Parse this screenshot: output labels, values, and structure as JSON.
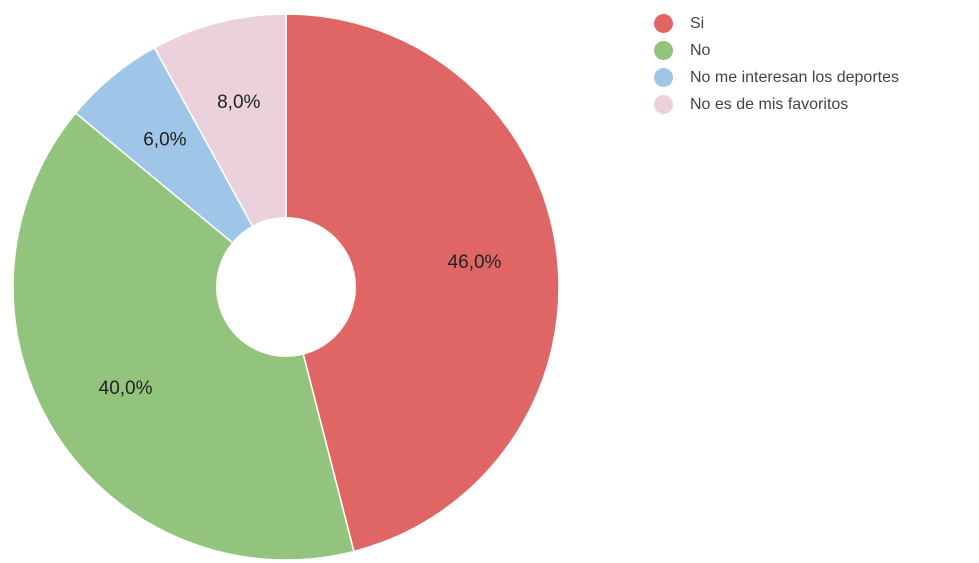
{
  "chart_data": {
    "type": "pie",
    "donut": true,
    "title": "",
    "start_angle_deg": 0,
    "direction": "clockwise",
    "legend_position": "right",
    "slices": [
      {
        "label": "Si",
        "value": 46.0,
        "display": "46,0%",
        "color": "#e06666"
      },
      {
        "label": "No",
        "value": 40.0,
        "display": "40,0%",
        "color": "#93c47d"
      },
      {
        "label": "No me interesan los deportes",
        "value": 6.0,
        "display": "6,0%",
        "color": "#9fc5e8"
      },
      {
        "label": "No es de mis favoritos",
        "value": 8.0,
        "display": "8,0%",
        "color": "#ead1dc"
      }
    ]
  }
}
